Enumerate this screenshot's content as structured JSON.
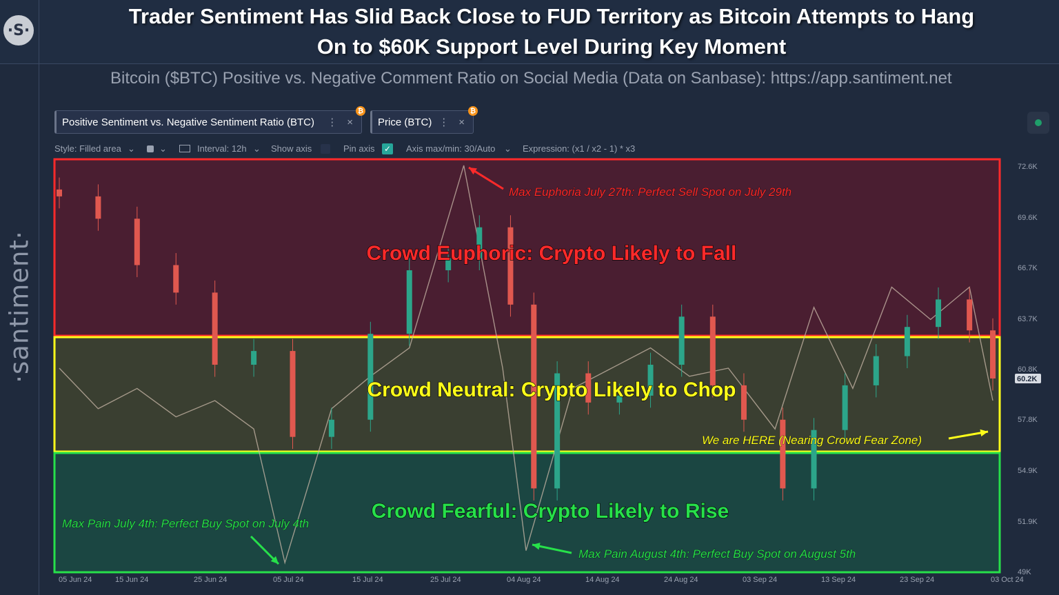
{
  "header": {
    "logo_text": "·S·",
    "headline_line1": "Trader Sentiment Has Slid Back Close to FUD Territory as Bitcoin Attempts to Hang",
    "headline_line2": "On to $60K Support Level During Key Moment"
  },
  "brand": "·santiment·",
  "subtitle": "Bitcoin ($BTC) Positive vs. Negative Comment Ratio on Social Media (Data on Sanbase): https://app.santiment.net",
  "metrics": [
    {
      "label": "Positive Sentiment vs. Negative Sentiment Ratio (BTC)",
      "dots": "⋮",
      "close": "×",
      "badge": "₿"
    },
    {
      "label": "Price (BTC)",
      "dots": "⋮",
      "close": "×",
      "badge": "₿"
    }
  ],
  "toolbar": {
    "style": "Style: Filled area",
    "interval": "Interval: 12h",
    "show_axis": "Show axis",
    "pin_axis": "Pin axis",
    "axis_maxmin": "Axis max/min: 30/Auto",
    "expression": "Expression: (x1 / x2 - 1) * x3",
    "pin_axis_checked": true
  },
  "colors": {
    "euphoric": "#ff2a2a",
    "neutral": "#ffff1a",
    "fearful": "#27e04a",
    "candle_up": "#2ca58a",
    "candle_down": "#e0584f",
    "sentiment_line": "#c9b8a8"
  },
  "chart_data": {
    "type": "line",
    "series": [
      {
        "name": "Price (BTC)",
        "style": "candlestick",
        "x": [
          "2024-06-05",
          "2024-06-10",
          "2024-06-15",
          "2024-06-20",
          "2024-06-25",
          "2024-06-30",
          "2024-07-05",
          "2024-07-10",
          "2024-07-15",
          "2024-07-20",
          "2024-07-25",
          "2024-07-29",
          "2024-08-02",
          "2024-08-05",
          "2024-08-08",
          "2024-08-12",
          "2024-08-16",
          "2024-08-20",
          "2024-08-24",
          "2024-08-28",
          "2024-09-01",
          "2024-09-06",
          "2024-09-10",
          "2024-09-14",
          "2024-09-18",
          "2024-09-22",
          "2024-09-26",
          "2024-09-30",
          "2024-10-03"
        ],
        "values": [
          70800,
          69500,
          66800,
          65200,
          61000,
          61800,
          56800,
          57800,
          62800,
          66500,
          67200,
          69000,
          64500,
          53800,
          60500,
          58800,
          59200,
          61000,
          63800,
          59800,
          57800,
          53800,
          57200,
          59800,
          61500,
          63200,
          64800,
          63000,
          60200
        ]
      },
      {
        "name": "Positive Sentiment vs. Negative Sentiment Ratio (BTC)",
        "style": "line",
        "x": [
          "2024-06-05",
          "2024-06-10",
          "2024-06-15",
          "2024-06-20",
          "2024-06-25",
          "2024-06-30",
          "2024-07-04",
          "2024-07-10",
          "2024-07-15",
          "2024-07-20",
          "2024-07-27",
          "2024-08-01",
          "2024-08-04",
          "2024-08-10",
          "2024-08-15",
          "2024-08-20",
          "2024-08-25",
          "2024-08-30",
          "2024-09-05",
          "2024-09-10",
          "2024-09-15",
          "2024-09-20",
          "2024-09-25",
          "2024-09-30",
          "2024-10-03"
        ],
        "values": [
          0.5,
          0.4,
          0.45,
          0.38,
          0.42,
          0.35,
          0.02,
          0.4,
          0.48,
          0.55,
          1.0,
          0.5,
          0.05,
          0.45,
          0.5,
          0.55,
          0.48,
          0.5,
          0.35,
          0.65,
          0.45,
          0.7,
          0.62,
          0.7,
          0.42
        ]
      }
    ],
    "x_ticks": [
      "05 Jun 24",
      "15 Jun 24",
      "25 Jun 24",
      "05 Jul 24",
      "15 Jul 24",
      "25 Jul 24",
      "04 Aug 24",
      "14 Aug 24",
      "24 Aug 24",
      "03 Sep 24",
      "13 Sep 24",
      "23 Sep 24",
      "03 Oct 24"
    ],
    "y_ticks": [
      "72.6K",
      "69.6K",
      "66.7K",
      "63.7K",
      "60.8K",
      "57.8K",
      "54.9K",
      "51.9K",
      "49K"
    ],
    "current_price_label": "60.2K",
    "ylim": [
      49000,
      72600
    ],
    "zones": [
      {
        "name": "euphoric",
        "label": "Crowd Euphoric: Crypto Likely to Fall"
      },
      {
        "name": "neutral",
        "label": "Crowd Neutral: Crypto Likely to Chop"
      },
      {
        "name": "fearful",
        "label": "Crowd Fearful: Crypto Likely to Rise"
      }
    ],
    "annotations": [
      {
        "name": "max-euphoria",
        "text": "Max Euphoria July 27th: Perfect Sell Spot on July 29th"
      },
      {
        "name": "we-are-here",
        "text": "We are HERE (Nearing Crowd Fear Zone)"
      },
      {
        "name": "max-pain-july",
        "text": "Max Pain July 4th: Perfect Buy Spot on July 4th"
      },
      {
        "name": "max-pain-august",
        "text": "Max Pain August 4th: Perfect Buy Spot on August 5th"
      }
    ]
  }
}
